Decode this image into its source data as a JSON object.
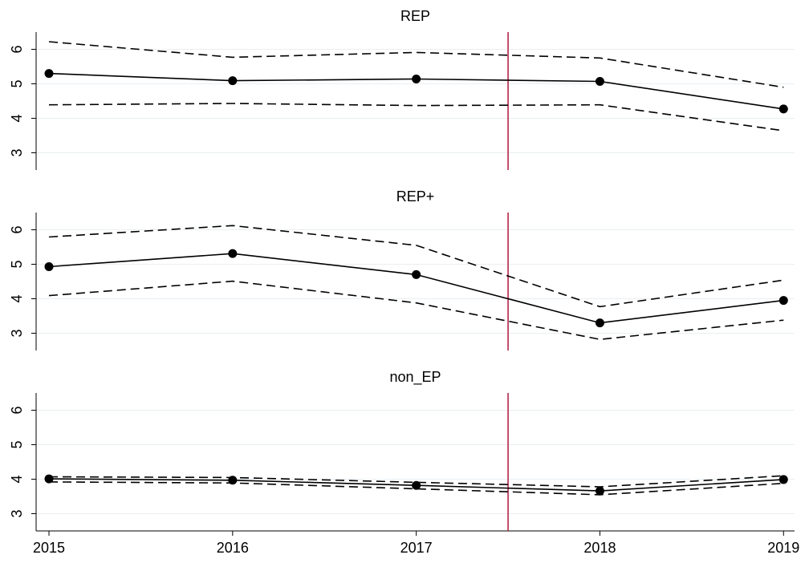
{
  "chart_data": [
    {
      "type": "line",
      "title": "REP",
      "x": [
        2015,
        2016,
        2017,
        2018,
        2019
      ],
      "xlim": [
        2014.93,
        2019.06
      ],
      "ylim": [
        2.5,
        6.5
      ],
      "yticks": [
        3,
        4,
        5,
        6
      ],
      "grid": true,
      "vline": 2017.5,
      "vline_color": "#b0173c",
      "series": [
        {
          "color": "#000000",
          "dashed": false,
          "markers": true,
          "values": [
            5.3,
            5.09,
            5.14,
            5.07,
            4.27
          ]
        },
        {
          "color": "#000000",
          "dashed": true,
          "markers": false,
          "values": [
            6.22,
            5.77,
            5.91,
            5.75,
            4.9
          ]
        },
        {
          "color": "#000000",
          "dashed": true,
          "markers": false,
          "values": [
            4.39,
            4.43,
            4.37,
            4.39,
            3.64
          ]
        }
      ]
    },
    {
      "type": "line",
      "title": "REP+",
      "x": [
        2015,
        2016,
        2017,
        2018,
        2019
      ],
      "xlim": [
        2014.93,
        2019.06
      ],
      "ylim": [
        2.5,
        6.5
      ],
      "yticks": [
        3,
        4,
        5,
        6
      ],
      "grid": true,
      "vline": 2017.5,
      "vline_color": "#b0173c",
      "series": [
        {
          "color": "#000000",
          "dashed": false,
          "markers": true,
          "values": [
            4.93,
            5.31,
            4.7,
            3.3,
            3.95
          ]
        },
        {
          "color": "#000000",
          "dashed": true,
          "markers": false,
          "values": [
            5.79,
            6.12,
            5.55,
            3.77,
            4.54
          ]
        },
        {
          "color": "#000000",
          "dashed": true,
          "markers": false,
          "values": [
            4.09,
            4.51,
            3.88,
            2.82,
            3.38
          ]
        }
      ]
    },
    {
      "type": "line",
      "title": "non_EP",
      "x": [
        2015,
        2016,
        2017,
        2018,
        2019
      ],
      "xlim": [
        2014.93,
        2019.06
      ],
      "xticks": [
        2015,
        2016,
        2017,
        2018,
        2019
      ],
      "ylim": [
        2.5,
        6.5
      ],
      "yticks": [
        3,
        4,
        5,
        6
      ],
      "grid": true,
      "vline": 2017.5,
      "vline_color": "#b0173c",
      "series": [
        {
          "color": "#000000",
          "dashed": false,
          "markers": true,
          "values": [
            4.01,
            3.97,
            3.82,
            3.66,
            3.99
          ]
        },
        {
          "color": "#000000",
          "dashed": true,
          "markers": false,
          "values": [
            4.07,
            4.05,
            3.91,
            3.78,
            4.1
          ]
        },
        {
          "color": "#000000",
          "dashed": true,
          "markers": false,
          "values": [
            3.92,
            3.89,
            3.72,
            3.55,
            3.88
          ]
        }
      ]
    }
  ]
}
